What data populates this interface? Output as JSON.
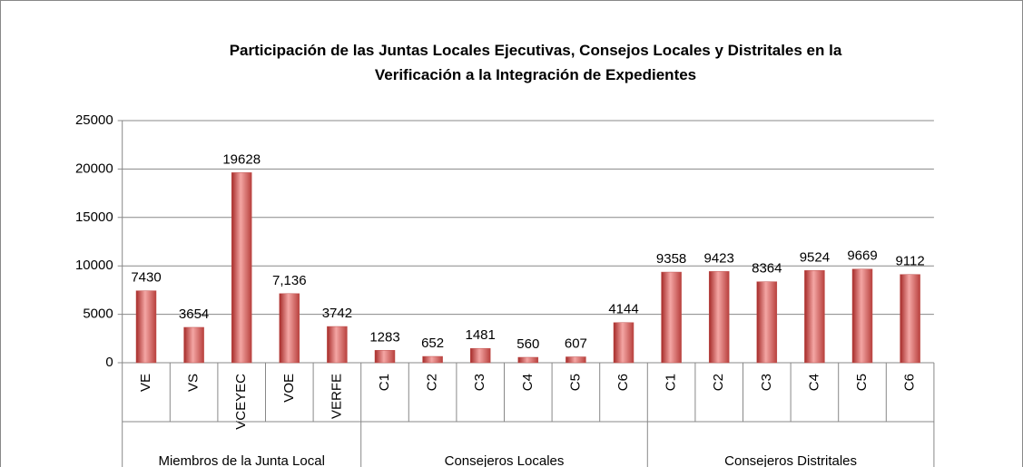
{
  "chart_data": {
    "type": "bar",
    "title": "Participación de las Juntas Locales Ejecutivas, Consejos Locales y Distritales en la Verificación a la Integración de Expedientes",
    "groups": [
      {
        "name": "Miembros de la Junta Local",
        "categories": [
          "VE",
          "VS",
          "VCEYEC",
          "VOE",
          "VERFE"
        ],
        "values": [
          7430,
          3654,
          19628,
          7136,
          3742
        ],
        "value_labels": [
          "7430",
          "3654",
          "19628",
          "7,136",
          "3742"
        ]
      },
      {
        "name": "Consejeros Locales",
        "categories": [
          "C1",
          "C2",
          "C3",
          "C4",
          "C5",
          "C6"
        ],
        "values": [
          1283,
          652,
          1481,
          560,
          607,
          4144
        ]
      },
      {
        "name": "Consejeros Distritales",
        "categories": [
          "C1",
          "C2",
          "C3",
          "C4",
          "C5",
          "C6"
        ],
        "values": [
          9358,
          9423,
          8364,
          9524,
          9669,
          9112
        ]
      }
    ],
    "color": "#c0504d",
    "ylim": [
      0,
      25000
    ],
    "yticks": [
      0,
      5000,
      10000,
      15000,
      20000,
      25000
    ],
    "grid": true
  }
}
